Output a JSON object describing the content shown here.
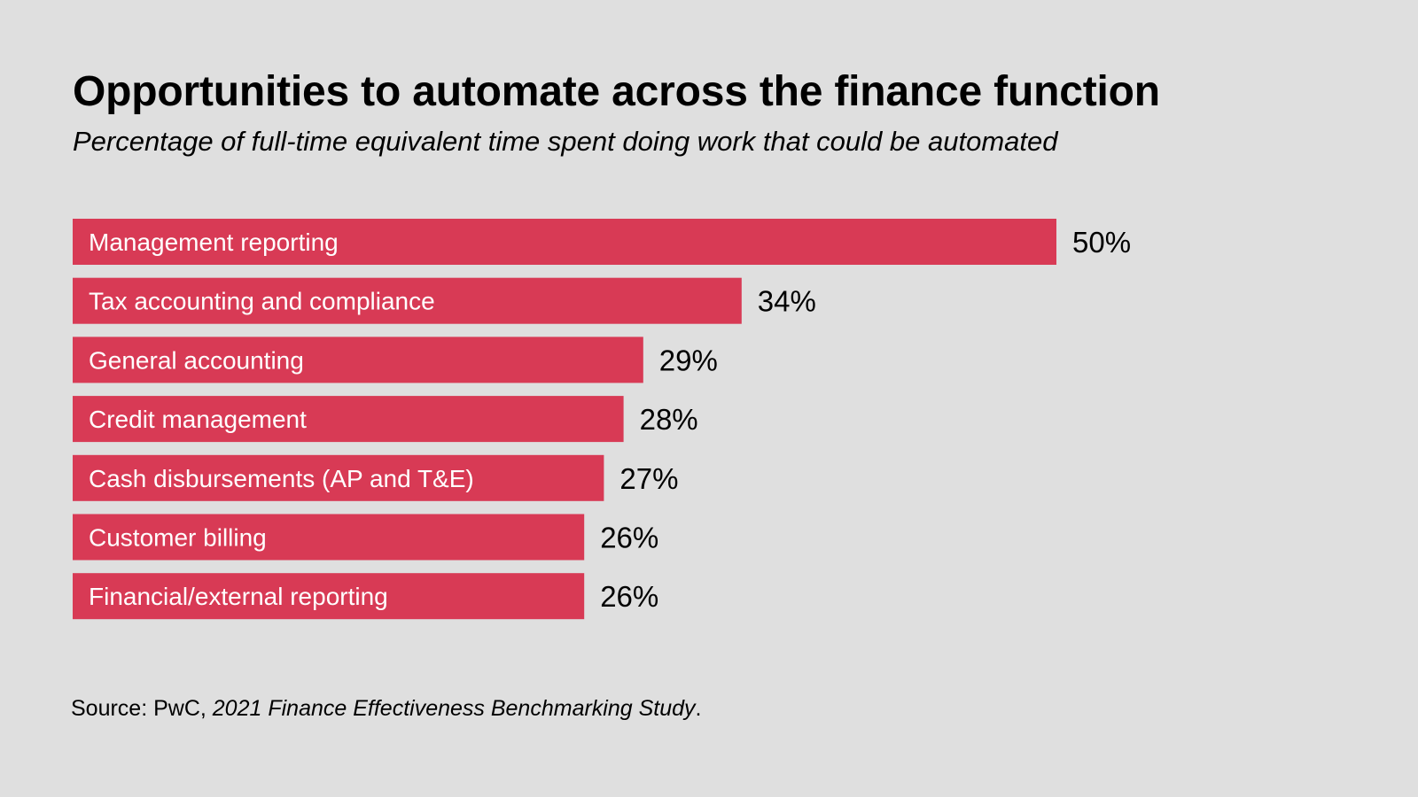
{
  "chart_data": {
    "type": "bar",
    "orientation": "horizontal",
    "title": "Opportunities to automate across the finance function",
    "subtitle": "Percentage of full-time equivalent time spent doing work that could be automated",
    "categories": [
      "Management reporting",
      "Tax accounting and compliance",
      "General accounting",
      "Credit management",
      "Cash disbursements (AP and T&E)",
      "Customer billing",
      "Financial/external reporting"
    ],
    "values": [
      50,
      34,
      29,
      28,
      27,
      26,
      26
    ],
    "value_labels": [
      "50%",
      "34%",
      "29%",
      "28%",
      "27%",
      "26%",
      "26%"
    ],
    "unit": "%",
    "xlabel": "",
    "ylabel": "",
    "xlim": [
      0,
      50
    ],
    "grid": false,
    "legend": "none",
    "bar_color": "#d83a55",
    "label_color": "#ffffff"
  },
  "source": {
    "prefix": "Source: PwC, ",
    "title": "2021 Finance Effectiveness Benchmarking Study",
    "suffix": "."
  }
}
